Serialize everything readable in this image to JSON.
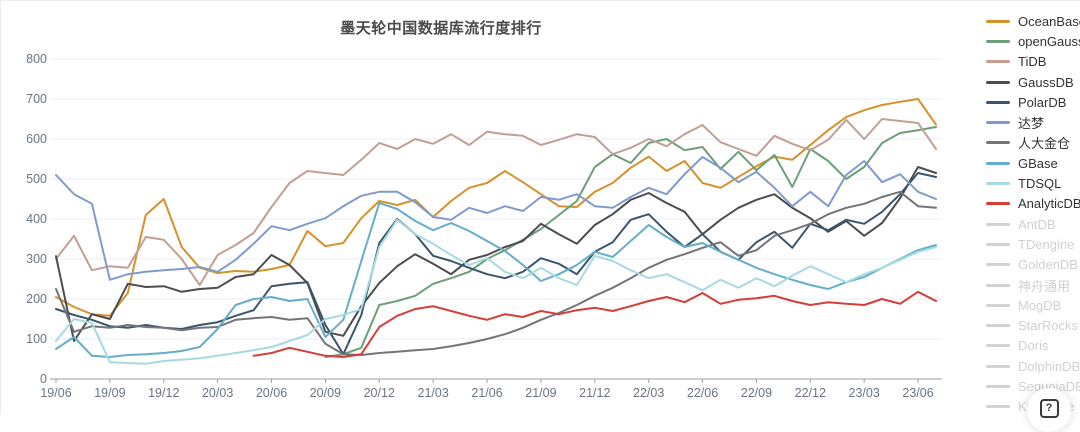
{
  "title": "墨天轮中国数据库流行度排行",
  "help": {
    "label": "?"
  },
  "chart_data": {
    "type": "line",
    "title": "墨天轮中国数据库流行度排行",
    "xlabel": "",
    "ylabel": "",
    "ylim": [
      0,
      800
    ],
    "y_ticks": [
      0,
      100,
      200,
      300,
      400,
      500,
      600,
      700,
      800
    ],
    "grid": true,
    "legend_position": "right",
    "x_tick_every": 3,
    "x": [
      "19/06",
      "19/07",
      "19/08",
      "19/09",
      "19/10",
      "19/11",
      "19/12",
      "20/01",
      "20/02",
      "20/03",
      "20/04",
      "20/05",
      "20/06",
      "20/07",
      "20/08",
      "20/09",
      "20/10",
      "20/11",
      "20/12",
      "21/01",
      "21/02",
      "21/03",
      "21/04",
      "21/05",
      "21/06",
      "21/07",
      "21/08",
      "21/09",
      "21/10",
      "21/11",
      "21/12",
      "22/01",
      "22/02",
      "22/03",
      "22/04",
      "22/05",
      "22/06",
      "22/07",
      "22/08",
      "22/09",
      "22/10",
      "22/11",
      "22/12",
      "23/01",
      "23/02",
      "23/03",
      "23/04",
      "23/05",
      "23/06",
      "23/07"
    ],
    "series": [
      {
        "name": "OceanBase",
        "color": "#d6912b",
        "enabled": true,
        "values": [
          205,
          180,
          162,
          158,
          215,
          410,
          450,
          330,
          278,
          265,
          270,
          268,
          275,
          285,
          370,
          332,
          340,
          402,
          445,
          435,
          448,
          405,
          445,
          478,
          490,
          520,
          492,
          462,
          432,
          430,
          468,
          490,
          528,
          556,
          520,
          545,
          490,
          478,
          505,
          532,
          556,
          548,
          585,
          622,
          655,
          672,
          685,
          693,
          700,
          636
        ]
      },
      {
        "name": "openGauss",
        "color": "#6b9f78",
        "enabled": true,
        "values": [
          null,
          null,
          null,
          null,
          null,
          null,
          null,
          null,
          null,
          null,
          null,
          null,
          null,
          null,
          null,
          55,
          62,
          78,
          185,
          195,
          208,
          238,
          252,
          268,
          300,
          322,
          348,
          375,
          410,
          445,
          530,
          562,
          540,
          590,
          600,
          572,
          580,
          525,
          568,
          522,
          560,
          480,
          575,
          545,
          500,
          530,
          590,
          615,
          622,
          630
        ]
      },
      {
        "name": "TiDB",
        "color": "#c49e92",
        "enabled": true,
        "values": [
          300,
          358,
          272,
          282,
          278,
          355,
          348,
          300,
          235,
          310,
          335,
          365,
          430,
          490,
          520,
          515,
          510,
          548,
          590,
          575,
          600,
          588,
          612,
          585,
          618,
          612,
          608,
          585,
          598,
          612,
          605,
          562,
          578,
          600,
          582,
          612,
          635,
          592,
          575,
          558,
          608,
          588,
          572,
          598,
          648,
          600,
          650,
          645,
          640,
          575
        ]
      },
      {
        "name": "GaussDB",
        "color": "#4d4d4d",
        "enabled": true,
        "values": [
          307,
          95,
          162,
          150,
          238,
          230,
          232,
          218,
          225,
          228,
          255,
          262,
          310,
          285,
          240,
          118,
          108,
          182,
          240,
          282,
          312,
          288,
          262,
          298,
          310,
          330,
          345,
          388,
          362,
          338,
          385,
          412,
          448,
          465,
          440,
          418,
          362,
          398,
          428,
          448,
          462,
          428,
          402,
          368,
          395,
          358,
          390,
          452,
          530,
          515
        ]
      },
      {
        "name": "PolarDB",
        "color": "#3a566e",
        "enabled": true,
        "values": [
          175,
          160,
          148,
          132,
          128,
          135,
          128,
          125,
          135,
          142,
          158,
          172,
          232,
          238,
          242,
          135,
          62,
          160,
          340,
          400,
          362,
          308,
          295,
          278,
          262,
          252,
          268,
          302,
          288,
          262,
          318,
          342,
          398,
          412,
          368,
          330,
          362,
          318,
          298,
          342,
          368,
          328,
          388,
          372,
          398,
          388,
          418,
          462,
          515,
          505
        ]
      },
      {
        "name": "达梦",
        "color": "#7f9bce",
        "enabled": true,
        "values": [
          510,
          462,
          438,
          248,
          262,
          268,
          272,
          275,
          280,
          268,
          298,
          338,
          382,
          372,
          388,
          402,
          432,
          458,
          468,
          468,
          442,
          405,
          398,
          428,
          415,
          432,
          420,
          455,
          448,
          462,
          432,
          428,
          455,
          478,
          462,
          512,
          555,
          528,
          492,
          518,
          478,
          432,
          468,
          432,
          510,
          545,
          492,
          512,
          468,
          450
        ]
      },
      {
        "name": "人大金仓",
        "color": "#74747a",
        "enabled": true,
        "values": [
          225,
          118,
          132,
          128,
          135,
          130,
          128,
          122,
          128,
          130,
          148,
          152,
          155,
          148,
          152,
          88,
          62,
          60,
          65,
          68,
          72,
          75,
          82,
          90,
          100,
          112,
          128,
          148,
          165,
          185,
          208,
          228,
          252,
          278,
          298,
          312,
          328,
          342,
          308,
          322,
          358,
          372,
          388,
          412,
          428,
          438,
          455,
          468,
          432,
          428
        ]
      },
      {
        "name": "GBase",
        "color": "#64aecb",
        "enabled": true,
        "values": [
          75,
          105,
          58,
          55,
          60,
          62,
          65,
          70,
          80,
          125,
          185,
          200,
          205,
          195,
          200,
          105,
          148,
          295,
          440,
          425,
          395,
          372,
          390,
          370,
          345,
          320,
          285,
          245,
          262,
          285,
          318,
          305,
          345,
          385,
          355,
          330,
          340,
          318,
          298,
          278,
          262,
          248,
          235,
          225,
          242,
          255,
          278,
          300,
          322,
          335
        ]
      },
      {
        "name": "TDSQL",
        "color": "#a6dae3",
        "enabled": true,
        "values": [
          95,
          150,
          140,
          42,
          40,
          38,
          45,
          48,
          52,
          58,
          65,
          72,
          80,
          95,
          110,
          150,
          160,
          175,
          330,
          398,
          362,
          338,
          310,
          285,
          302,
          268,
          252,
          278,
          252,
          235,
          308,
          295,
          272,
          252,
          262,
          242,
          222,
          248,
          228,
          252,
          232,
          258,
          282,
          262,
          242,
          262,
          278,
          298,
          318,
          330
        ]
      },
      {
        "name": "AnalyticDB",
        "color": "#d63d35",
        "enabled": true,
        "values": [
          null,
          null,
          null,
          null,
          null,
          null,
          null,
          null,
          null,
          null,
          null,
          58,
          65,
          78,
          68,
          58,
          55,
          62,
          130,
          158,
          175,
          182,
          170,
          158,
          148,
          162,
          155,
          170,
          162,
          172,
          178,
          170,
          182,
          195,
          205,
          192,
          215,
          188,
          198,
          202,
          208,
          195,
          185,
          192,
          188,
          185,
          200,
          188,
          218,
          195
        ]
      },
      {
        "name": "AntDB",
        "enabled": false,
        "values": []
      },
      {
        "name": "TDengine",
        "enabled": false,
        "values": []
      },
      {
        "name": "GoldenDB",
        "enabled": false,
        "values": []
      },
      {
        "name": "神舟通用",
        "enabled": false,
        "values": []
      },
      {
        "name": "MogDB",
        "enabled": false,
        "values": []
      },
      {
        "name": "StarRocks",
        "enabled": false,
        "values": []
      },
      {
        "name": "Doris",
        "enabled": false,
        "values": []
      },
      {
        "name": "DolphinDB",
        "enabled": false,
        "values": []
      },
      {
        "name": "SequoiaDB",
        "enabled": false,
        "values": []
      },
      {
        "name": "Kyligence",
        "enabled": false,
        "values": []
      }
    ],
    "colors": {
      "grid": "#e8edf4",
      "axis_line": "#9aa0a6",
      "axis_label": "#697586",
      "disabled_legend": "#d2d2d2"
    }
  }
}
